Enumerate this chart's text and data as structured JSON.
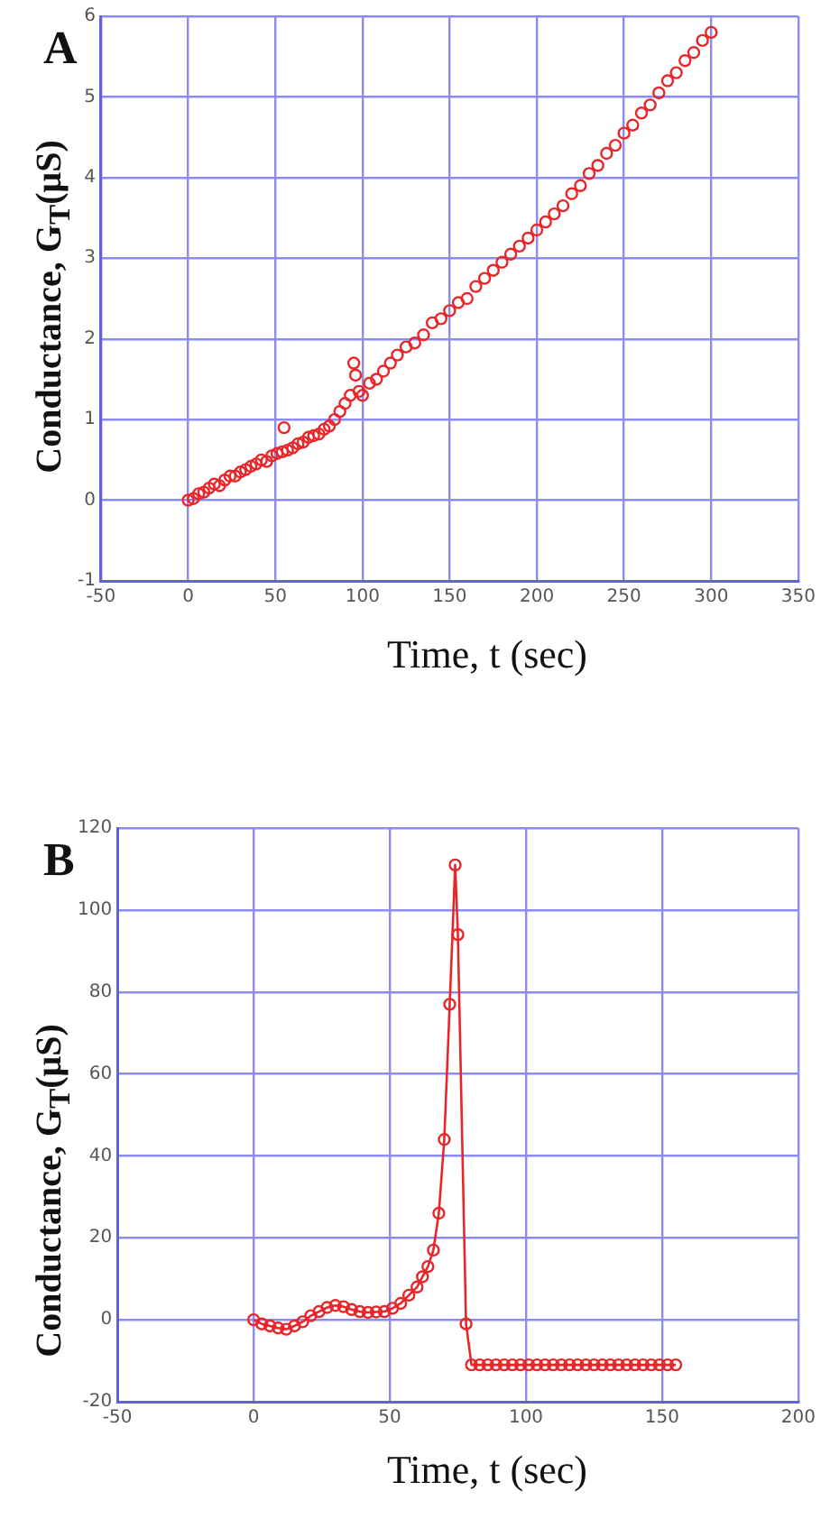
{
  "chart_data": [
    {
      "type": "scatter",
      "title": "A",
      "xlabel": "Time, t (sec)",
      "ylabel": "Conductance, G$_{T}$(μS)",
      "color": "#e8262a",
      "marker": "circle",
      "grid": true,
      "xlim": [
        -50,
        350
      ],
      "xticks": [
        -50,
        0,
        50,
        100,
        150,
        200,
        250,
        300,
        350
      ],
      "ylim": [
        -1,
        6
      ],
      "yticks": [
        -1,
        0,
        1,
        2,
        3,
        4,
        5,
        6
      ],
      "x": [
        0,
        3,
        6,
        9,
        12,
        15,
        18,
        21,
        24,
        27,
        30,
        33,
        36,
        39,
        42,
        45,
        48,
        51,
        54,
        55,
        57,
        60,
        63,
        66,
        69,
        72,
        75,
        78,
        81,
        84,
        87,
        90,
        93,
        95,
        96,
        98,
        100,
        104,
        108,
        112,
        116,
        120,
        125,
        130,
        135,
        140,
        145,
        150,
        155,
        160,
        165,
        170,
        175,
        180,
        185,
        190,
        195,
        200,
        205,
        210,
        215,
        220,
        225,
        230,
        235,
        240,
        245,
        250,
        255,
        260,
        265,
        270,
        275,
        280,
        285,
        290,
        295,
        300
      ],
      "values": [
        0,
        0.02,
        0.08,
        0.1,
        0.15,
        0.2,
        0.18,
        0.25,
        0.3,
        0.3,
        0.35,
        0.38,
        0.42,
        0.45,
        0.5,
        0.48,
        0.55,
        0.58,
        0.6,
        0.9,
        0.62,
        0.65,
        0.7,
        0.72,
        0.78,
        0.8,
        0.82,
        0.88,
        0.92,
        1.0,
        1.1,
        1.2,
        1.3,
        1.7,
        1.55,
        1.35,
        1.3,
        1.45,
        1.5,
        1.6,
        1.7,
        1.8,
        1.9,
        1.95,
        2.05,
        2.2,
        2.25,
        2.35,
        2.45,
        2.5,
        2.65,
        2.75,
        2.85,
        2.95,
        3.05,
        3.15,
        3.25,
        3.35,
        3.45,
        3.55,
        3.65,
        3.8,
        3.9,
        4.05,
        4.15,
        4.3,
        4.4,
        4.55,
        4.65,
        4.8,
        4.9,
        5.05,
        5.2,
        5.3,
        5.45,
        5.55,
        5.7,
        5.8
      ]
    },
    {
      "type": "line",
      "title": "B",
      "xlabel": "Time, t (sec)",
      "ylabel": "Conductance, G$_{T}$(μS)",
      "color": "#e8262a",
      "marker": "circle",
      "line_style": "solid",
      "grid": true,
      "xlim": [
        -50,
        200
      ],
      "xticks": [
        -50,
        0,
        50,
        100,
        150,
        200
      ],
      "ylim": [
        -20,
        120
      ],
      "yticks": [
        -20,
        0,
        20,
        40,
        60,
        80,
        100,
        120
      ],
      "x": [
        0,
        3,
        6,
        9,
        12,
        15,
        18,
        21,
        24,
        27,
        30,
        33,
        36,
        39,
        42,
        45,
        48,
        51,
        54,
        57,
        60,
        62,
        64,
        66,
        68,
        70,
        72,
        74,
        75,
        78,
        80,
        83,
        86,
        89,
        92,
        95,
        98,
        101,
        104,
        107,
        110,
        113,
        116,
        119,
        122,
        125,
        128,
        131,
        134,
        137,
        140,
        143,
        146,
        149,
        152,
        155
      ],
      "values": [
        0,
        -1,
        -1.5,
        -2,
        -2.3,
        -1.5,
        -0.5,
        1,
        2,
        3,
        3.5,
        3.2,
        2.5,
        2,
        1.8,
        1.9,
        2,
        2.8,
        4,
        6,
        8,
        10.5,
        13,
        17,
        26,
        44,
        77,
        111,
        94,
        -1,
        -11,
        -11,
        -11,
        -11,
        -11,
        -11,
        -11,
        -11,
        -11,
        -11,
        -11,
        -11,
        -11,
        -11,
        -11,
        -11,
        -11,
        -11,
        -11,
        -11,
        -11,
        -11,
        -11,
        -11,
        -11,
        -11
      ]
    }
  ]
}
